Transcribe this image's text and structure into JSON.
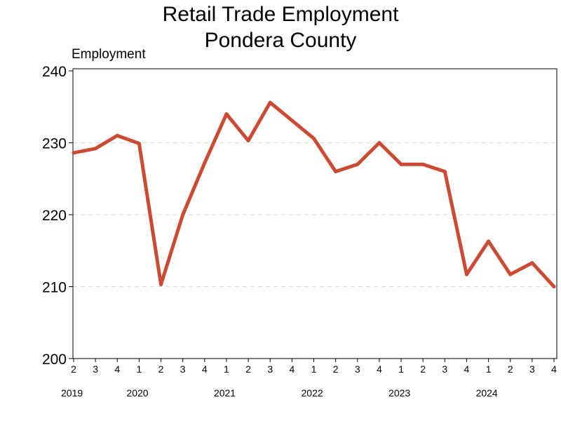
{
  "chart_data": {
    "type": "line",
    "title_line1": "Retail Trade Employment",
    "title_line2": "Pondera County",
    "ylabel": "Employment",
    "xlabel": "",
    "ylim": [
      200,
      240
    ],
    "yticks": [
      200,
      210,
      220,
      230,
      240
    ],
    "grid": "horizontal dashed",
    "line_color": "#cc4a33",
    "x_quarters": [
      "2",
      "3",
      "4",
      "1",
      "2",
      "3",
      "4",
      "1",
      "2",
      "3",
      "4",
      "1",
      "2",
      "3",
      "4",
      "1",
      "2",
      "3",
      "4",
      "1",
      "2",
      "3",
      "4"
    ],
    "year_labels": [
      {
        "label": "2019",
        "start": 0
      },
      {
        "label": "2020",
        "start": 3
      },
      {
        "label": "2021",
        "start": 7
      },
      {
        "label": "2022",
        "start": 11
      },
      {
        "label": "2023",
        "start": 15
      },
      {
        "label": "2024",
        "start": 19
      }
    ],
    "series": [
      {
        "values": [
          228.6,
          229.2,
          231.0,
          229.9,
          210.3,
          220.0,
          227.2,
          234.0,
          230.3,
          235.6,
          233.1,
          230.6,
          226.0,
          227.0,
          230.0,
          227.0,
          227.0,
          226.0,
          211.7,
          216.3,
          211.7,
          213.3,
          210.0
        ]
      }
    ]
  }
}
